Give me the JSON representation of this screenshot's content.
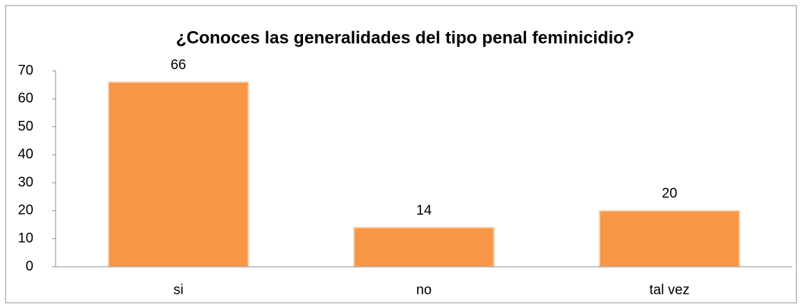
{
  "chart_data": {
    "type": "bar",
    "title": "¿Conoces las generalidades del tipo penal feminicidio?",
    "categories": [
      "si",
      "no",
      "tal vez"
    ],
    "values": [
      66,
      14,
      20
    ],
    "color": "#f79646",
    "ylim": [
      0,
      70
    ],
    "yticks": [
      0,
      10,
      20,
      30,
      40,
      50,
      60,
      70
    ],
    "grid": false
  }
}
